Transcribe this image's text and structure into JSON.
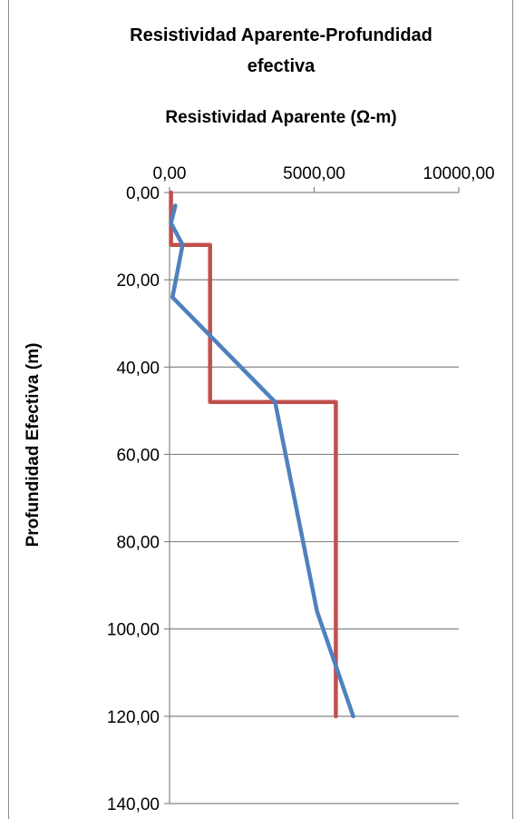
{
  "chart_data": {
    "type": "line",
    "title_lines": [
      "Resistividad Aparente-Profundidad",
      "efectiva"
    ],
    "xlabel": "Resistividad Aparente (Ω-m)",
    "ylabel": "Profundidad Efectiva (m)",
    "x_axis_position": "top",
    "y_axis_inverted": true,
    "xlim": [
      0,
      10000
    ],
    "ylim": [
      0,
      140
    ],
    "x_ticks": [
      "0,00",
      "5000,00",
      "10000,00"
    ],
    "y_ticks": [
      "0,00",
      "20,00",
      "40,00",
      "60,00",
      "80,00",
      "100,00",
      "120,00",
      "140,00"
    ],
    "grid": "horizontal",
    "legend": "none",
    "series": [
      {
        "color": "#c0504d",
        "points": [
          [
            50,
            0
          ],
          [
            50,
            12
          ],
          [
            1400,
            12
          ],
          [
            1400,
            48
          ],
          [
            5750,
            48
          ],
          [
            5750,
            120
          ]
        ]
      },
      {
        "color": "#4f81bd",
        "points": [
          [
            200,
            3
          ],
          [
            50,
            7
          ],
          [
            450,
            12
          ],
          [
            100,
            24
          ],
          [
            3650,
            48
          ],
          [
            5100,
            96
          ],
          [
            6350,
            120
          ]
        ]
      }
    ]
  }
}
